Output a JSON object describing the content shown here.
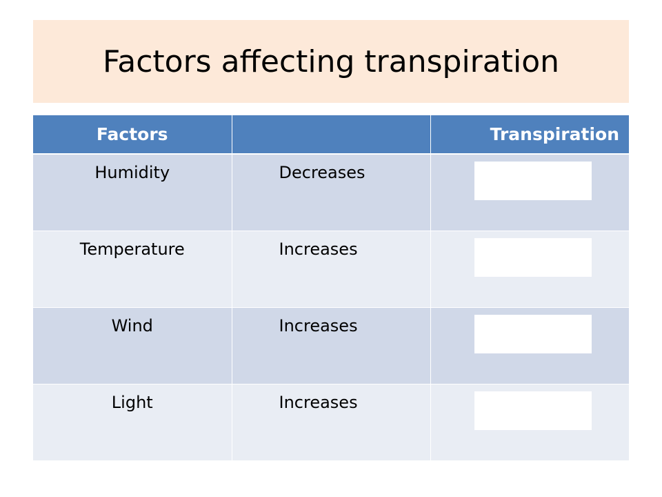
{
  "slide": {
    "title": "Factors affecting transpiration"
  },
  "table": {
    "headers": [
      "Factors",
      "",
      "Transpiration"
    ],
    "rows": [
      {
        "factor": "Humidity",
        "effect": "Decreases",
        "answer": ""
      },
      {
        "factor": "Temperature",
        "effect": "Increases",
        "answer": ""
      },
      {
        "factor": "Wind",
        "effect": "Increases",
        "answer": ""
      },
      {
        "factor": "Light",
        "effect": "Increases",
        "answer": ""
      }
    ]
  },
  "colors": {
    "title_band": "#fde9d9",
    "header_fill": "#4f81bd",
    "row_odd": "#d0d8e8",
    "row_even": "#e9edf4",
    "answer_box": "#ffffff"
  }
}
